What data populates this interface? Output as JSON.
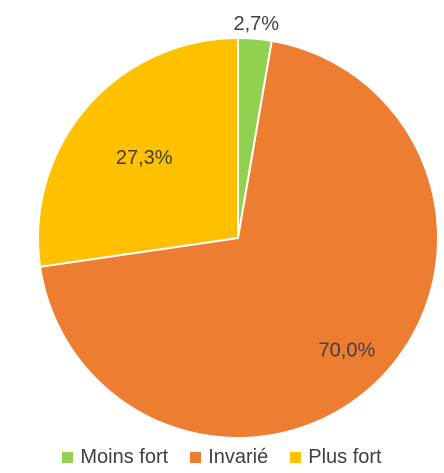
{
  "chart_data": {
    "type": "pie",
    "title": "",
    "categories": [
      "Moins fort",
      "Invarié",
      "Plus fort"
    ],
    "values": [
      2.7,
      70.0,
      27.3
    ],
    "data_labels": [
      "2,7%",
      "70,0%",
      "27,3%"
    ],
    "colors": [
      "#92D050",
      "#ED7D31",
      "#FFC000"
    ],
    "legend_position": "bottom"
  }
}
